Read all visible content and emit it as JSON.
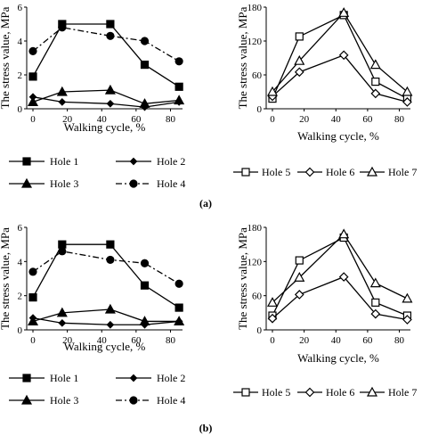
{
  "chart_data": [
    {
      "type": "line",
      "panel": "a",
      "ylabel": "The stress value, MPa",
      "xlabel": "Walking cycle, %",
      "xlim": [
        0,
        85
      ],
      "ylim": [
        0,
        6
      ],
      "xticks": [
        0,
        20,
        40,
        60,
        80
      ],
      "yticks": [
        0,
        2,
        4,
        6
      ],
      "grid": false,
      "legend": "below",
      "series": [
        {
          "name": "Hole 1",
          "marker": "square",
          "dash": "solid",
          "x": [
            0,
            17,
            45,
            65,
            85
          ],
          "y": [
            1.9,
            5.0,
            5.0,
            2.6,
            1.3
          ]
        },
        {
          "name": "Hole 2",
          "marker": "diamond",
          "dash": "solid",
          "x": [
            0,
            17,
            45,
            65,
            85
          ],
          "y": [
            0.7,
            0.4,
            0.3,
            0.1,
            0.4
          ]
        },
        {
          "name": "Hole 3",
          "marker": "triangle",
          "dash": "solid",
          "x": [
            0,
            17,
            45,
            65,
            85
          ],
          "y": [
            0.4,
            1.0,
            1.1,
            0.3,
            0.5
          ]
        },
        {
          "name": "Hole 4",
          "marker": "circle",
          "dash": "dashdot",
          "x": [
            0,
            17,
            45,
            65,
            85
          ],
          "y": [
            3.4,
            4.8,
            4.3,
            4.0,
            2.8
          ]
        }
      ]
    },
    {
      "type": "line",
      "panel": "a",
      "ylabel": "The stress value, MPa",
      "xlabel": "Walking cycle, %",
      "xlim": [
        0,
        85
      ],
      "ylim": [
        0,
        180
      ],
      "xticks": [
        0,
        20,
        40,
        60,
        80
      ],
      "yticks": [
        0,
        60,
        120,
        180
      ],
      "grid": false,
      "legend": "below",
      "series": [
        {
          "name": "Hole 5",
          "marker": "square-open",
          "dash": "solid",
          "x": [
            0,
            17,
            45,
            65,
            85
          ],
          "y": [
            18,
            128,
            166,
            48,
            18
          ]
        },
        {
          "name": "Hole 6",
          "marker": "diamond-open",
          "dash": "solid",
          "x": [
            0,
            17,
            45,
            65,
            85
          ],
          "y": [
            22,
            65,
            95,
            27,
            12
          ]
        },
        {
          "name": "Hole 7",
          "marker": "triangle-open",
          "dash": "solid",
          "x": [
            0,
            17,
            45,
            65,
            85
          ],
          "y": [
            30,
            85,
            170,
            78,
            30
          ]
        }
      ]
    },
    {
      "type": "line",
      "panel": "b",
      "ylabel": "The stress value, MPa",
      "xlabel": "Walking cycle, %",
      "xlim": [
        0,
        85
      ],
      "ylim": [
        0,
        6
      ],
      "xticks": [
        0,
        20,
        40,
        60,
        80
      ],
      "yticks": [
        0,
        2,
        4,
        6
      ],
      "grid": false,
      "legend": "below",
      "series": [
        {
          "name": "Hole 1",
          "marker": "square",
          "dash": "solid",
          "x": [
            0,
            17,
            45,
            65,
            85
          ],
          "y": [
            1.9,
            5.0,
            5.0,
            2.6,
            1.3
          ]
        },
        {
          "name": "Hole 2",
          "marker": "diamond",
          "dash": "solid",
          "x": [
            0,
            17,
            45,
            65,
            85
          ],
          "y": [
            0.7,
            0.4,
            0.3,
            0.3,
            0.5
          ]
        },
        {
          "name": "Hole 3",
          "marker": "triangle",
          "dash": "solid",
          "x": [
            0,
            17,
            45,
            65,
            85
          ],
          "y": [
            0.5,
            1.0,
            1.2,
            0.5,
            0.5
          ]
        },
        {
          "name": "Hole 4",
          "marker": "circle",
          "dash": "dashdot",
          "x": [
            0,
            17,
            45,
            65,
            85
          ],
          "y": [
            3.4,
            4.6,
            4.1,
            3.9,
            2.7
          ]
        }
      ]
    },
    {
      "type": "line",
      "panel": "b",
      "ylabel": "The stress value, MPa",
      "xlabel": "Walking cycle, %",
      "xlim": [
        0,
        85
      ],
      "ylim": [
        0,
        180
      ],
      "xticks": [
        0,
        20,
        40,
        60,
        80
      ],
      "yticks": [
        0,
        60,
        120,
        180
      ],
      "grid": false,
      "legend": "below",
      "series": [
        {
          "name": "Hole 5",
          "marker": "square-open",
          "dash": "solid",
          "x": [
            0,
            17,
            45,
            65,
            85
          ],
          "y": [
            25,
            122,
            162,
            48,
            25
          ]
        },
        {
          "name": "Hole 6",
          "marker": "diamond-open",
          "dash": "solid",
          "x": [
            0,
            17,
            45,
            65,
            85
          ],
          "y": [
            20,
            62,
            93,
            28,
            18
          ]
        },
        {
          "name": "Hole 7",
          "marker": "triangle-open",
          "dash": "solid",
          "x": [
            0,
            17,
            45,
            65,
            85
          ],
          "y": [
            48,
            92,
            168,
            82,
            55
          ]
        }
      ]
    }
  ],
  "panel_labels": [
    "(a)",
    "(b)"
  ]
}
